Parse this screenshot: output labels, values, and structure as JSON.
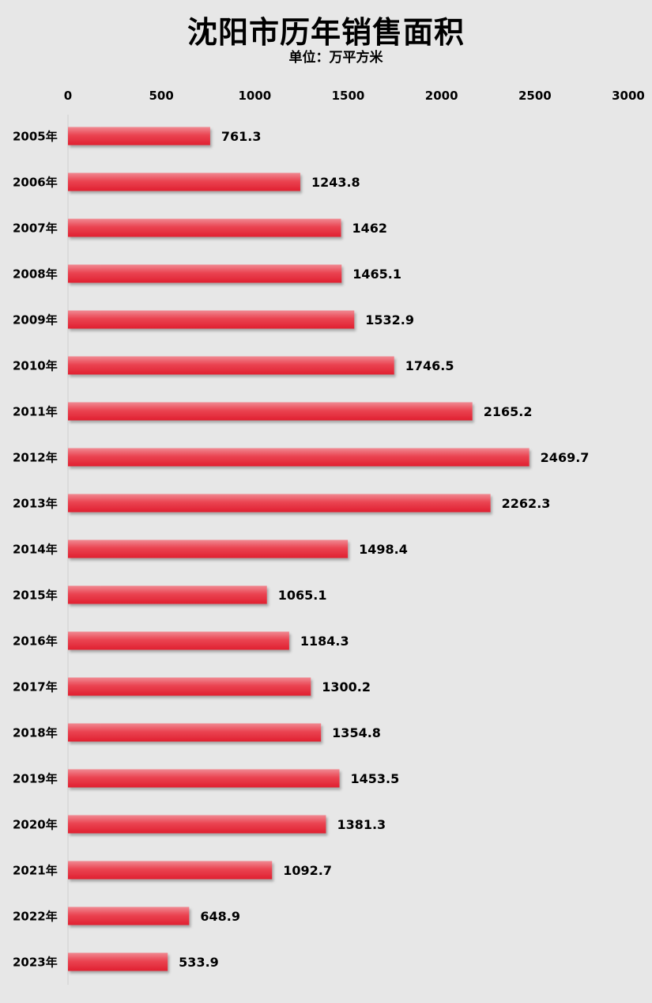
{
  "chart_data": {
    "type": "bar",
    "orientation": "horizontal",
    "title": "沈阳市历年销售面积",
    "subtitle": "单位：万平方米",
    "categories": [
      "2005年",
      "2006年",
      "2007年",
      "2008年",
      "2009年",
      "2010年",
      "2011年",
      "2012年",
      "2013年",
      "2014年",
      "2015年",
      "2016年",
      "2017年",
      "2018年",
      "2019年",
      "2020年",
      "2021年",
      "2022年",
      "2023年"
    ],
    "values": [
      761.3,
      1243.8,
      1462,
      1465.1,
      1532.9,
      1746.5,
      2165.2,
      2469.7,
      2262.3,
      1498.4,
      1065.1,
      1184.3,
      1300.2,
      1354.8,
      1453.5,
      1381.3,
      1092.7,
      648.9,
      533.9
    ],
    "value_labels": [
      "761.3",
      "1243.8",
      "1462",
      "1465.1",
      "1532.9",
      "1746.5",
      "2165.2",
      "2469.7",
      "2262.3",
      "1498.4",
      "1065.1",
      "1184.3",
      "1300.2",
      "1354.8",
      "1453.5",
      "1381.3",
      "1092.7",
      "648.9",
      "533.9"
    ],
    "xlim": [
      0,
      3000
    ],
    "x_ticks": [
      "0",
      "500",
      "1000",
      "1500",
      "2000",
      "2500",
      "3000"
    ],
    "x_axis_position": "top",
    "grid": false,
    "legend": "none",
    "bar_color": "#e8323f"
  }
}
